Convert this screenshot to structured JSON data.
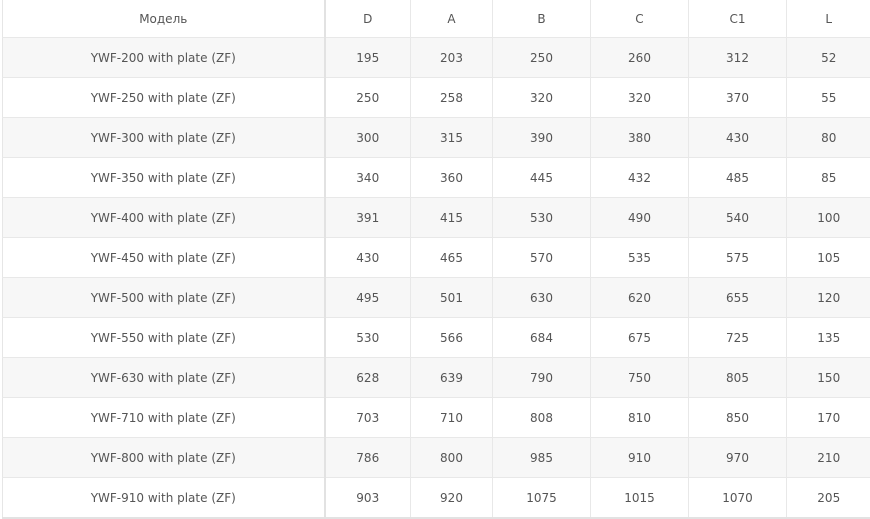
{
  "table": {
    "headers": [
      "Модель",
      "D",
      "A",
      "B",
      "C",
      "C1",
      "L"
    ],
    "rows": [
      [
        "YWF-200 with plate (ZF)",
        "195",
        "203",
        "250",
        "260",
        "312",
        "52"
      ],
      [
        "YWF-250 with plate (ZF)",
        "250",
        "258",
        "320",
        "320",
        "370",
        "55"
      ],
      [
        "YWF-300 with plate (ZF)",
        "300",
        "315",
        "390",
        "380",
        "430",
        "80"
      ],
      [
        "YWF-350 with plate (ZF)",
        "340",
        "360",
        "445",
        "432",
        "485",
        "85"
      ],
      [
        "YWF-400 with plate (ZF)",
        "391",
        "415",
        "530",
        "490",
        "540",
        "100"
      ],
      [
        "YWF-450 with plate (ZF)",
        "430",
        "465",
        "570",
        "535",
        "575",
        "105"
      ],
      [
        "YWF-500 with plate (ZF)",
        "495",
        "501",
        "630",
        "620",
        "655",
        "120"
      ],
      [
        "YWF-550 with plate (ZF)",
        "530",
        "566",
        "684",
        "675",
        "725",
        "135"
      ],
      [
        "YWF-630 with plate (ZF)",
        "628",
        "639",
        "790",
        "750",
        "805",
        "150"
      ],
      [
        "YWF-710 with plate (ZF)",
        "703",
        "710",
        "808",
        "810",
        "850",
        "170"
      ],
      [
        "YWF-800 with plate (ZF)",
        "786",
        "800",
        "985",
        "910",
        "970",
        "210"
      ],
      [
        "YWF-910 with plate (ZF)",
        "903",
        "920",
        "1075",
        "1015",
        "1070",
        "205"
      ]
    ]
  }
}
